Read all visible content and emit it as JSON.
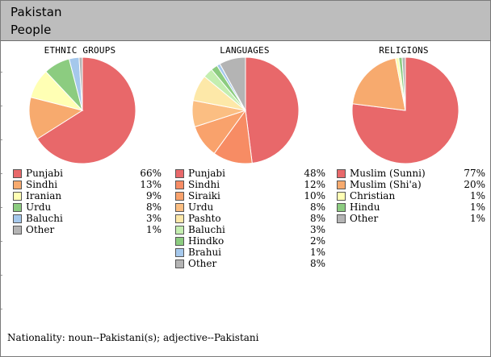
{
  "header": {
    "line1": "Pakistan",
    "line2": "People"
  },
  "chart_data": [
    {
      "type": "pie",
      "title": "ETHNIC GROUPS",
      "labels": [
        "Punjabi",
        "Sindhi",
        "Iranian",
        "Urdu",
        "Baluchi",
        "Other"
      ],
      "values": [
        66,
        13,
        9,
        8,
        3,
        1
      ],
      "display_values": [
        "66%",
        "13%",
        "9%",
        "8%",
        "3%",
        "1%"
      ],
      "colors": [
        "#e8686a",
        "#f7aa6e",
        "#ffffb4",
        "#8ccc80",
        "#a5c8ec",
        "#b4b4b4"
      ]
    },
    {
      "type": "pie",
      "title": "LANGUAGES",
      "labels": [
        "Punjabi",
        "Sindhi",
        "Siraiki",
        "Urdu",
        "Pashto",
        "Baluchi",
        "Hindko",
        "Brahui",
        "Other"
      ],
      "values": [
        48,
        12,
        10,
        8,
        8,
        3,
        2,
        1,
        8
      ],
      "display_values": [
        "48%",
        "12%",
        "10%",
        "8%",
        "8%",
        "3%",
        "2%",
        "1%",
        "8%"
      ],
      "colors": [
        "#e8686a",
        "#f78c64",
        "#f9a26c",
        "#fbbe82",
        "#fde8a8",
        "#c4eeb0",
        "#8ccc80",
        "#a5c8ec",
        "#b4b4b4"
      ]
    },
    {
      "type": "pie",
      "title": "RELIGIONS",
      "labels": [
        "Muslim (Sunni)",
        "Muslim (Shi'a)",
        "Christian",
        "Hindu",
        "Other"
      ],
      "values": [
        77,
        20,
        1,
        1,
        1
      ],
      "display_values": [
        "77%",
        "20%",
        "1%",
        "1%",
        "1%"
      ],
      "colors": [
        "#e8686a",
        "#f7aa6e",
        "#ffffb4",
        "#8ccc80",
        "#b4b4b4"
      ]
    }
  ],
  "footer": {
    "nationality": "Nationality: noun--Pakistani(s); adjective--Pakistani"
  }
}
